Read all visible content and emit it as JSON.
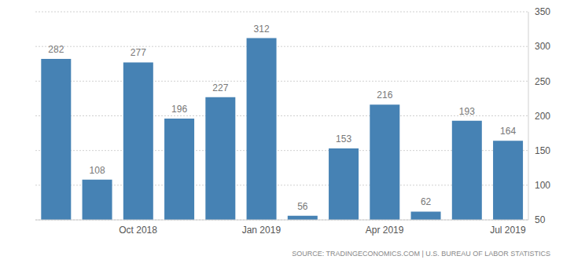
{
  "chart_data": {
    "type": "bar",
    "categories": [
      null,
      null,
      "Oct 2018",
      null,
      null,
      "Jan 2019",
      null,
      null,
      "Apr 2019",
      null,
      null,
      "Jul 2019"
    ],
    "values": [
      282,
      108,
      277,
      196,
      227,
      312,
      56,
      153,
      216,
      62,
      193,
      164
    ],
    "color": "#4682b4",
    "ylim": [
      50,
      350
    ],
    "yticks": [
      50,
      100,
      150,
      200,
      250,
      300,
      350
    ],
    "grid": true,
    "data_labels": true,
    "source": "SOURCE: TRADINGECONOMICS.COM | U.S. BUREAU OF LABOR STATISTICS"
  }
}
